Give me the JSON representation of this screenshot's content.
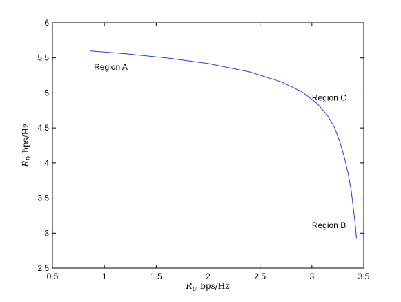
{
  "chart_data": {
    "type": "line",
    "title": "",
    "xlabel": {
      "symbol": "R",
      "subscript": "U",
      "unit": "bps/Hz"
    },
    "ylabel": {
      "symbol": "R",
      "subscript": "D",
      "unit": "bps/Hz"
    },
    "xlim": [
      0.5,
      3.5
    ],
    "ylim": [
      2.5,
      6
    ],
    "xticks": [
      "0.5",
      "1",
      "1.5",
      "2",
      "2.5",
      "3",
      "3.5"
    ],
    "yticks": [
      "2.5",
      "3",
      "3.5",
      "4",
      "4.5",
      "5",
      "5.5",
      "6"
    ],
    "grid": false,
    "legend": "none",
    "series": [
      {
        "color": "#1f3fd6",
        "x": [
          0.86,
          1.2,
          1.6,
          2.0,
          2.4,
          2.7,
          2.9,
          3.05,
          3.15,
          3.22,
          3.27,
          3.31,
          3.35,
          3.38,
          3.4,
          3.42,
          3.43
        ],
        "y": [
          5.6,
          5.56,
          5.5,
          5.42,
          5.3,
          5.16,
          5.02,
          4.85,
          4.68,
          4.5,
          4.3,
          4.1,
          3.85,
          3.6,
          3.35,
          3.1,
          2.92
        ]
      }
    ],
    "annotations": [
      {
        "text": "Region A",
        "x": 0.9,
        "y": 5.37
      },
      {
        "text": "Region C",
        "x": 3.0,
        "y": 4.93
      },
      {
        "text": "Region B",
        "x": 3.0,
        "y": 3.11
      }
    ]
  }
}
